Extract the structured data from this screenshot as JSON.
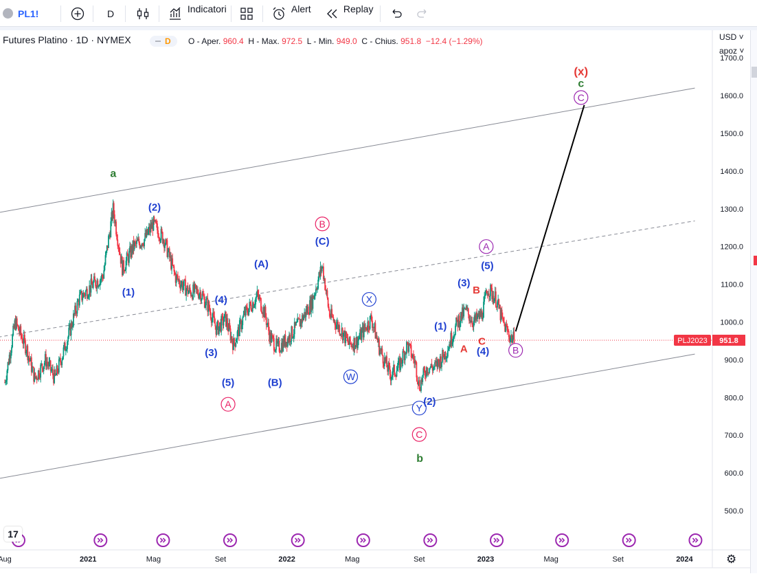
{
  "toolbar": {
    "symbol": "PL1!",
    "interval": "D",
    "indicators_label": "Indicatori",
    "alert_label": "Alert",
    "replay_label": "Replay"
  },
  "legend": {
    "title": "Futures Platino · 1D · NYMEX",
    "badge_label": "D",
    "open_label": "O - Aper.",
    "open": "960.4",
    "high_label": "H - Max.",
    "high": "972.5",
    "low_label": "L - Min.",
    "low": "949.0",
    "close_label": "C - Chius.",
    "close": "951.8",
    "change": "−12.4 (−1.29%)"
  },
  "price_axis": {
    "currency": "USD",
    "scale_mode": "apoz",
    "symbol_tag": "PLJ2023",
    "last_price": "951.8"
  },
  "colors": {
    "up": "#089981",
    "down": "#f23645",
    "blue": "#2962ff",
    "wave_blue": "#1e3fd0",
    "pink": "#e91e63",
    "purple": "#9c27b0",
    "green": "#2e7d32",
    "red": "#e53935",
    "channel": "#868993"
  },
  "chart_data": {
    "type": "candlestick",
    "title": "Futures Platino · 1D · NYMEX",
    "ylim": [
      420,
      1720
    ],
    "y_ticks": [
      500,
      600,
      700,
      800,
      900,
      1000,
      1100,
      1200,
      1300,
      1400,
      1500,
      1600,
      1700
    ],
    "x_range": [
      "2020-08-01",
      "2024-03-01"
    ],
    "x_ticks": [
      {
        "date": "2020-08-01",
        "label": "Aug"
      },
      {
        "date": "2021-01-01",
        "label": "2021"
      },
      {
        "date": "2021-05-01",
        "label": "Mag"
      },
      {
        "date": "2021-09-01",
        "label": "Set"
      },
      {
        "date": "2022-01-01",
        "label": "2022"
      },
      {
        "date": "2022-05-01",
        "label": "Mag"
      },
      {
        "date": "2022-09-01",
        "label": "Set"
      },
      {
        "date": "2023-01-01",
        "label": "2023"
      },
      {
        "date": "2023-05-01",
        "label": "Mag"
      },
      {
        "date": "2023-09-01",
        "label": "Set"
      },
      {
        "date": "2024-01-01",
        "label": "2024"
      }
    ],
    "price_path": [
      [
        "2020-08-01",
        840
      ],
      [
        "2020-08-20",
        1000
      ],
      [
        "2020-09-10",
        930
      ],
      [
        "2020-09-25",
        850
      ],
      [
        "2020-10-15",
        900
      ],
      [
        "2020-11-01",
        850
      ],
      [
        "2020-11-25",
        960
      ],
      [
        "2020-12-15",
        1060
      ],
      [
        "2021-01-10",
        1100
      ],
      [
        "2021-01-28",
        1120
      ],
      [
        "2021-02-16",
        1300
      ],
      [
        "2021-03-05",
        1140
      ],
      [
        "2021-03-25",
        1200
      ],
      [
        "2021-04-15",
        1220
      ],
      [
        "2021-04-30",
        1260
      ],
      [
        "2021-05-20",
        1220
      ],
      [
        "2021-06-10",
        1120
      ],
      [
        "2021-07-05",
        1080
      ],
      [
        "2021-07-25",
        1080
      ],
      [
        "2021-08-10",
        1040
      ],
      [
        "2021-08-25",
        980
      ],
      [
        "2021-09-10",
        1010
      ],
      [
        "2021-09-25",
        940
      ],
      [
        "2021-10-15",
        1020
      ],
      [
        "2021-11-08",
        1070
      ],
      [
        "2021-11-22",
        1020
      ],
      [
        "2021-12-01",
        960
      ],
      [
        "2021-12-15",
        930
      ],
      [
        "2022-01-05",
        960
      ],
      [
        "2022-01-25",
        1000
      ],
      [
        "2022-02-15",
        1050
      ],
      [
        "2022-03-07",
        1150
      ],
      [
        "2022-03-20",
        1020
      ],
      [
        "2022-04-10",
        980
      ],
      [
        "2022-04-25",
        940
      ],
      [
        "2022-05-10",
        950
      ],
      [
        "2022-06-05",
        1010
      ],
      [
        "2022-06-20",
        930
      ],
      [
        "2022-07-10",
        860
      ],
      [
        "2022-07-25",
        880
      ],
      [
        "2022-08-10",
        940
      ],
      [
        "2022-08-25",
        890
      ],
      [
        "2022-09-01",
        830
      ],
      [
        "2022-09-15",
        880
      ],
      [
        "2022-09-30",
        880
      ],
      [
        "2022-10-20",
        920
      ],
      [
        "2022-11-10",
        1000
      ],
      [
        "2022-11-25",
        1030
      ],
      [
        "2022-12-10",
        1000
      ],
      [
        "2022-12-25",
        1020
      ],
      [
        "2023-01-05",
        1090
      ],
      [
        "2023-01-20",
        1060
      ],
      [
        "2023-02-01",
        1000
      ],
      [
        "2023-02-15",
        960
      ],
      [
        "2023-02-24",
        951.8
      ]
    ],
    "channel": {
      "upper": [
        [
          "2020-07-20",
          1290
        ],
        [
          "2024-01-20",
          1620
        ]
      ],
      "middle": [
        [
          "2020-07-20",
          960
        ],
        [
          "2024-01-20",
          1268
        ]
      ],
      "lower": [
        [
          "2020-07-20",
          585
        ],
        [
          "2024-01-20",
          915
        ]
      ]
    },
    "projection": [
      [
        "2023-02-25",
        975
      ],
      [
        "2023-07-01",
        1575
      ]
    ],
    "last_price_line": 951.8,
    "wave_labels": [
      {
        "text": "a",
        "date": "2021-02-16",
        "price": 1395,
        "style": "green"
      },
      {
        "text": "(2)",
        "date": "2021-05-03",
        "price": 1305,
        "style": "blue"
      },
      {
        "text": "(1)",
        "date": "2021-03-16",
        "price": 1080,
        "style": "blue"
      },
      {
        "text": "(4)",
        "date": "2021-09-02",
        "price": 1060,
        "style": "blue"
      },
      {
        "text": "(3)",
        "date": "2021-08-15",
        "price": 920,
        "style": "blue"
      },
      {
        "text": "(5)",
        "date": "2021-09-15",
        "price": 840,
        "style": "blue"
      },
      {
        "text": "A",
        "date": "2021-09-15",
        "price": 782,
        "style": "pink-circle"
      },
      {
        "text": "(A)",
        "date": "2021-11-15",
        "price": 1155,
        "style": "blue"
      },
      {
        "text": "(B)",
        "date": "2021-12-10",
        "price": 840,
        "style": "blue"
      },
      {
        "text": "B",
        "date": "2022-03-07",
        "price": 1260,
        "style": "pink-circle"
      },
      {
        "text": "(C)",
        "date": "2022-03-07",
        "price": 1215,
        "style": "blue"
      },
      {
        "text": "X",
        "date": "2022-06-01",
        "price": 1060,
        "style": "blue-circle"
      },
      {
        "text": "W",
        "date": "2022-04-28",
        "price": 855,
        "style": "blue-circle"
      },
      {
        "text": "(1)",
        "date": "2022-10-10",
        "price": 990,
        "style": "blue"
      },
      {
        "text": "Y",
        "date": "2022-09-01",
        "price": 772,
        "style": "blue-circle"
      },
      {
        "text": "(2)",
        "date": "2022-09-20",
        "price": 790,
        "style": "blue"
      },
      {
        "text": "C",
        "date": "2022-09-01",
        "price": 702,
        "style": "pink-circle"
      },
      {
        "text": "b",
        "date": "2022-09-02",
        "price": 640,
        "style": "green"
      },
      {
        "text": "(3)",
        "date": "2022-11-22",
        "price": 1105,
        "style": "blue"
      },
      {
        "text": "A",
        "date": "2022-11-22",
        "price": 930,
        "style": "red"
      },
      {
        "text": "B",
        "date": "2022-12-15",
        "price": 1085,
        "style": "red"
      },
      {
        "text": "C",
        "date": "2022-12-25",
        "price": 950,
        "style": "red"
      },
      {
        "text": "(4)",
        "date": "2022-12-27",
        "price": 923,
        "style": "blue"
      },
      {
        "text": "A",
        "date": "2023-01-02",
        "price": 1200,
        "style": "purple-circle"
      },
      {
        "text": "(5)",
        "date": "2023-01-04",
        "price": 1150,
        "style": "blue"
      },
      {
        "text": "B",
        "date": "2023-02-25",
        "price": 925,
        "style": "purple-circle"
      },
      {
        "text": "(x)",
        "date": "2023-06-25",
        "price": 1665,
        "style": "red-paren"
      },
      {
        "text": "c",
        "date": "2023-06-25",
        "price": 1633,
        "style": "green"
      },
      {
        "text": "C",
        "date": "2023-06-25",
        "price": 1595,
        "style": "purple-circle"
      }
    ]
  }
}
